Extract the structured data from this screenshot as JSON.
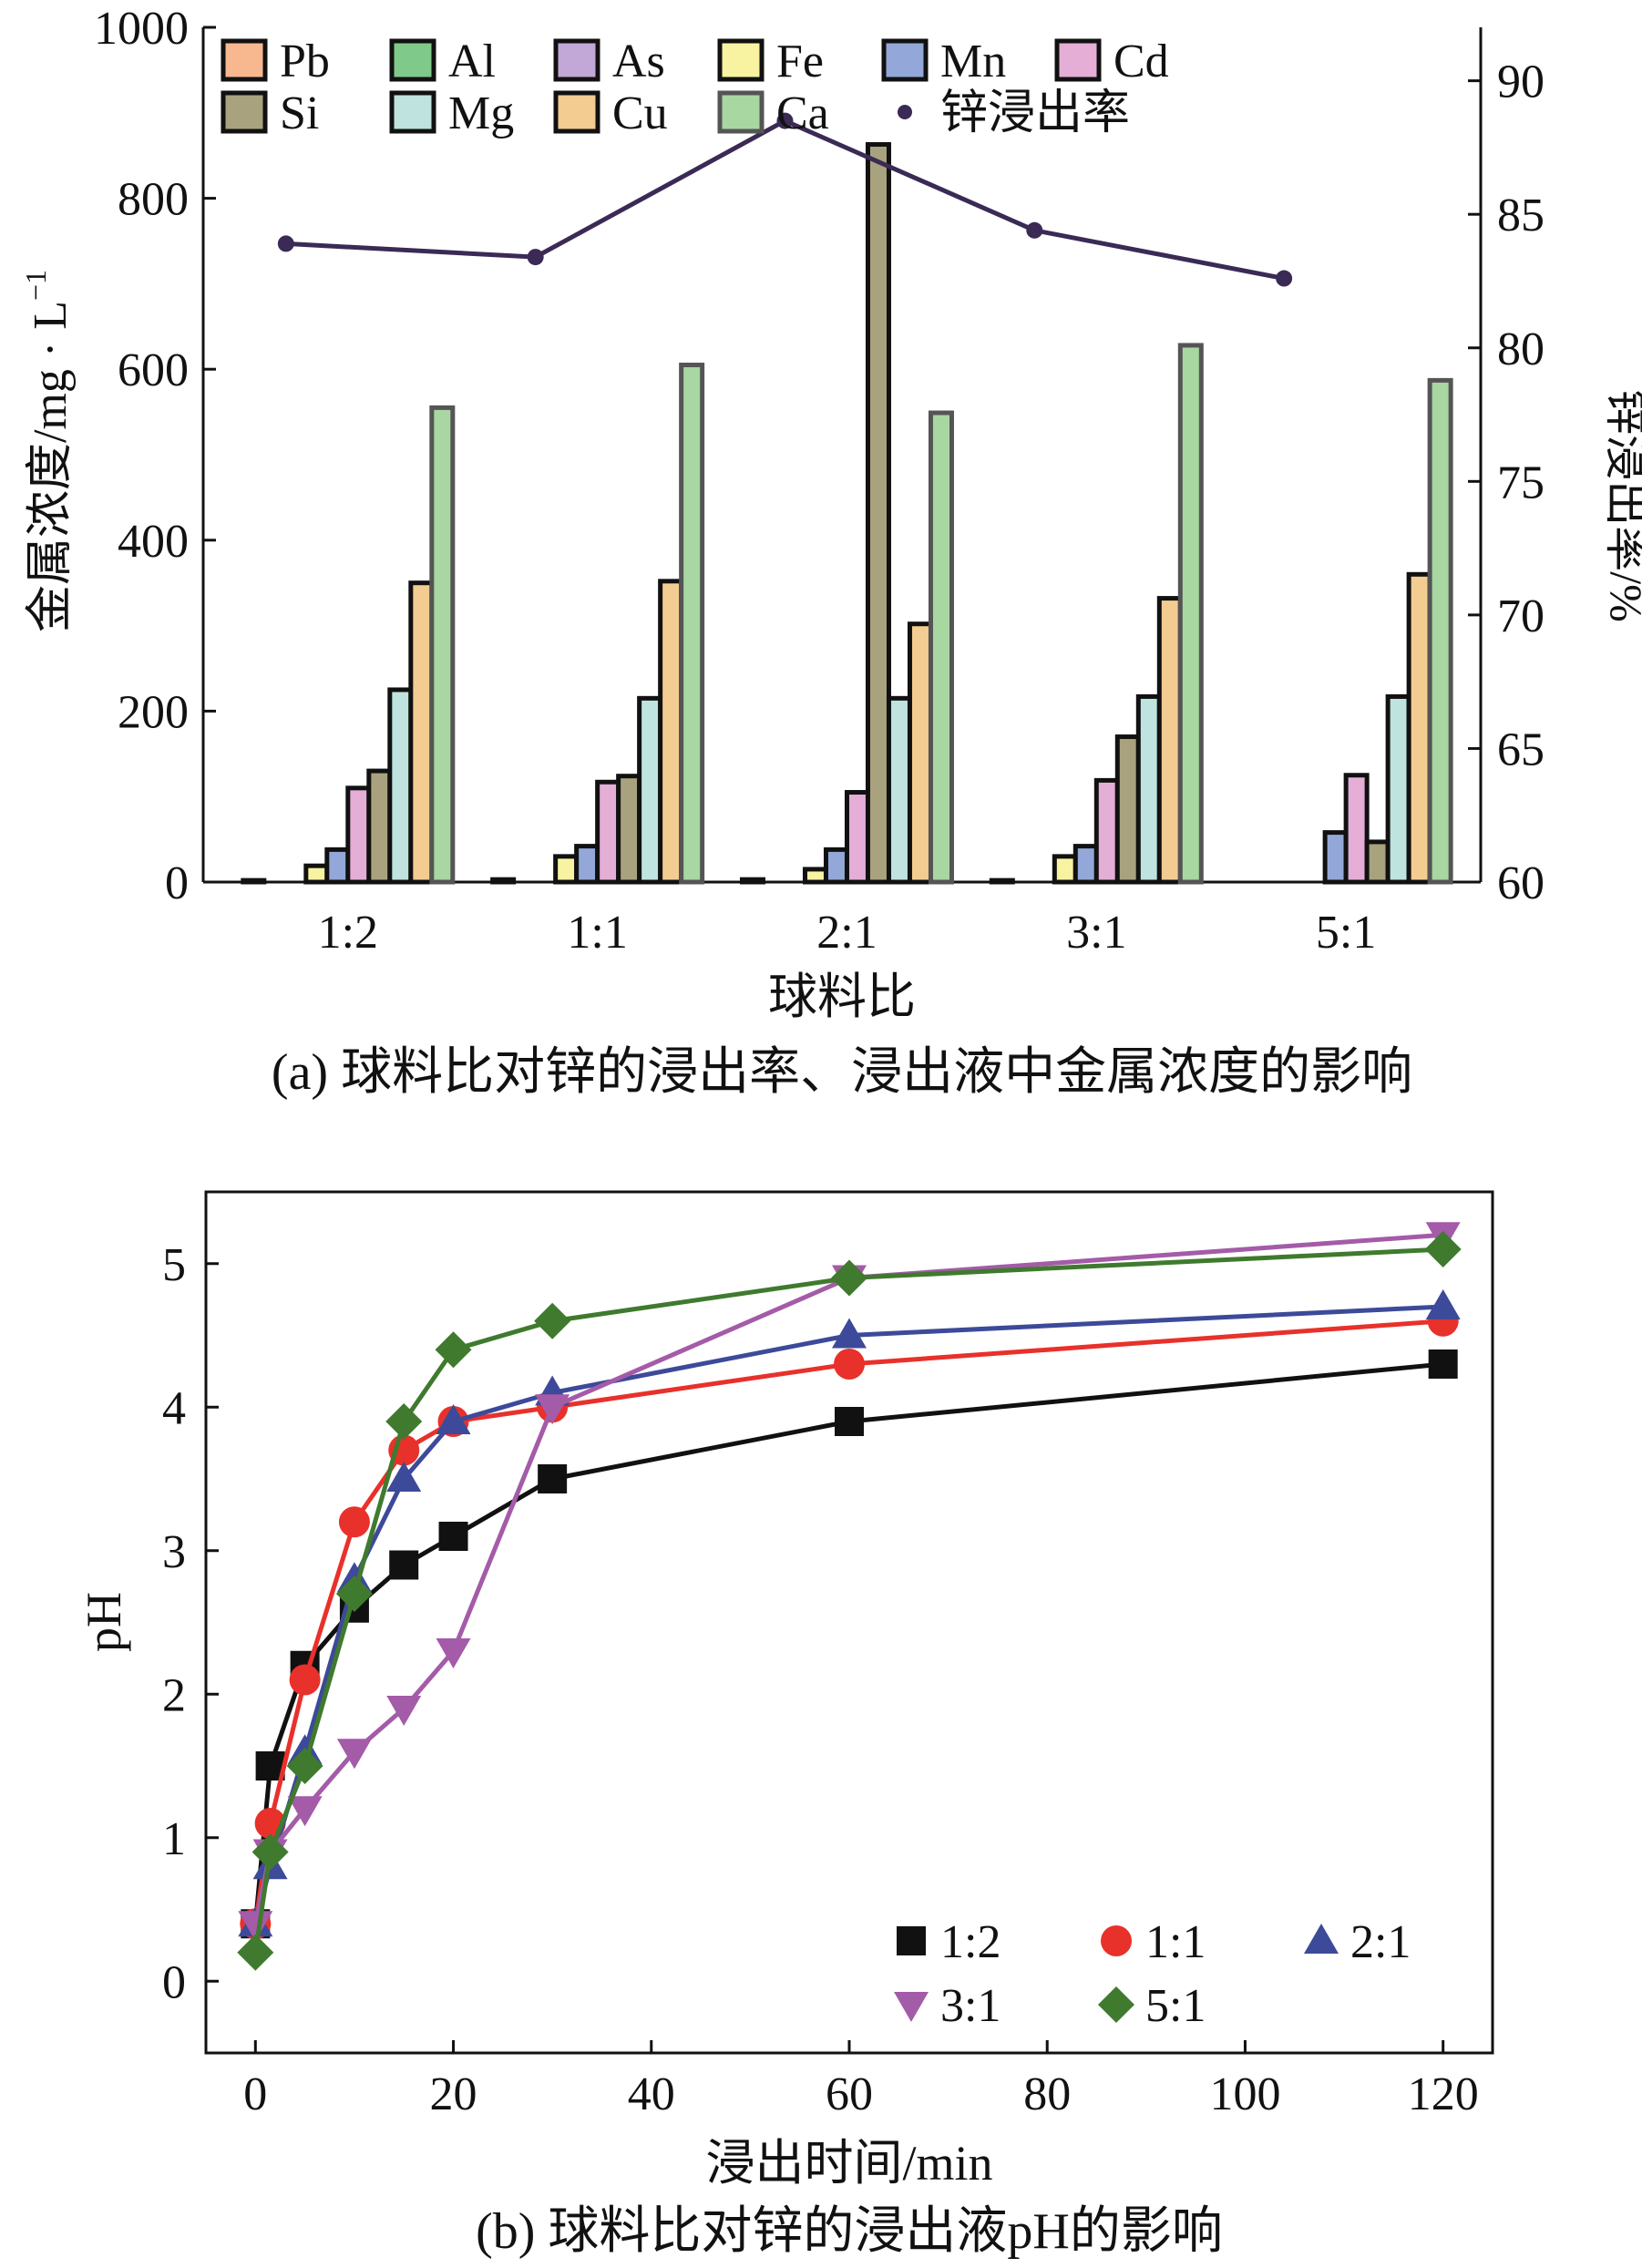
{
  "chart_data": [
    {
      "type": "bar",
      "title": "(a) 球料比对锌的浸出率、浸出液中金属浓度的影响",
      "xlabel": "球料比",
      "ylabel": "金属浓度/mg · L",
      "ylabel_sup": "−1",
      "y2label": "锌浸出率/%",
      "ylim": [
        0,
        1000
      ],
      "yticks": [
        "0",
        "200",
        "400",
        "600",
        "800",
        "1000"
      ],
      "y2lim": [
        60,
        92
      ],
      "y2ticks": [
        "60",
        "65",
        "70",
        "75",
        "80",
        "85",
        "90"
      ],
      "categories": [
        "1:2",
        "1:1",
        "2:1",
        "3:1",
        "5:1"
      ],
      "series": [
        {
          "name": "Pb",
          "color": "#f8b88f",
          "values": [
            2,
            3,
            3,
            2,
            0
          ]
        },
        {
          "name": "Al",
          "color": "#7fc98a",
          "values": [
            0,
            0,
            0,
            0,
            0
          ]
        },
        {
          "name": "As",
          "color": "#c2a8d6",
          "values": [
            0,
            0,
            0,
            0,
            0
          ]
        },
        {
          "name": "Fe",
          "color": "#f8f3a0",
          "values": [
            19,
            30,
            15,
            30,
            0
          ]
        },
        {
          "name": "Mn",
          "color": "#93a8d8",
          "values": [
            38,
            42,
            38,
            42,
            58
          ]
        },
        {
          "name": "Cd",
          "color": "#e4aed6",
          "values": [
            110,
            117,
            105,
            119,
            125
          ]
        },
        {
          "name": "Si",
          "color": "#a8a37e",
          "values": [
            130,
            124,
            863,
            170,
            47
          ]
        },
        {
          "name": "Mg",
          "color": "#bfe3df",
          "values": [
            225,
            215,
            215,
            217,
            217
          ]
        },
        {
          "name": "Cu",
          "color": "#f3cc91",
          "values": [
            350,
            352,
            302,
            332,
            360
          ]
        },
        {
          "name": "Ca",
          "color": "#a8d7a2",
          "values": [
            555,
            605,
            549,
            628,
            587
          ]
        }
      ],
      "line_series": {
        "name": "锌浸出率",
        "color": "#3a2a55",
        "values": [
          83.9,
          83.4,
          88.5,
          84.4,
          82.6
        ]
      },
      "legend": "top"
    },
    {
      "type": "line",
      "title": "(b) 球料比对锌的浸出液pH的影响",
      "xlabel": "浸出时间/min",
      "ylabel": "pH",
      "xlim": [
        -5,
        125
      ],
      "ylim": [
        -0.5,
        5.5
      ],
      "xticks": [
        "0",
        "20",
        "40",
        "60",
        "80",
        "100",
        "120"
      ],
      "yticks": [
        "0",
        "1",
        "2",
        "3",
        "4",
        "5"
      ],
      "x": [
        0,
        1.5,
        5,
        10,
        15,
        20,
        30,
        60,
        120
      ],
      "series": [
        {
          "name": "1:2",
          "color": "#111111",
          "marker": "square",
          "values": [
            0.4,
            1.5,
            2.2,
            2.6,
            2.9,
            3.1,
            3.5,
            3.9,
            4.3
          ]
        },
        {
          "name": "1:1",
          "color": "#e8312b",
          "marker": "circle",
          "values": [
            0.4,
            1.1,
            2.1,
            3.2,
            3.7,
            3.9,
            4.0,
            4.3,
            4.6
          ]
        },
        {
          "name": "2:1",
          "color": "#3d4a99",
          "marker": "triangle-up",
          "values": [
            0.4,
            0.8,
            1.6,
            2.8,
            3.5,
            3.9,
            4.1,
            4.5,
            4.7
          ]
        },
        {
          "name": "3:1",
          "color": "#a45ba8",
          "marker": "triangle-down",
          "values": [
            0.4,
            0.9,
            1.2,
            1.6,
            1.9,
            2.3,
            4.0,
            4.9,
            5.2
          ]
        },
        {
          "name": "5:1",
          "color": "#3f7a2e",
          "marker": "diamond",
          "values": [
            0.2,
            0.9,
            1.5,
            2.7,
            3.9,
            4.4,
            4.6,
            4.9,
            5.1
          ]
        }
      ],
      "legend": "bottom-right"
    }
  ]
}
